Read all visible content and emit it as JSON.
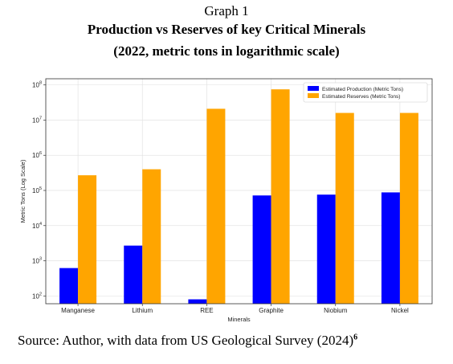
{
  "figure": {
    "label": "Graph 1",
    "title_line1": "Production vs Reserves of key Critical Minerals",
    "title_line2": "(2022, metric tons in logarithmic scale)",
    "source_text": "Source: Author, with data from US Geological Survey (2024)",
    "source_note": "6"
  },
  "chart_data": {
    "type": "bar",
    "title": "",
    "xlabel": "Minerals",
    "ylabel": "Metric Tons (Log Scale)",
    "yscale": "log",
    "ylim": [
      60,
      150000000
    ],
    "yticks": [
      {
        "value": 100,
        "base": "10",
        "exp": "2"
      },
      {
        "value": 1000,
        "base": "10",
        "exp": "3"
      },
      {
        "value": 10000,
        "base": "10",
        "exp": "4"
      },
      {
        "value": 100000,
        "base": "10",
        "exp": "5"
      },
      {
        "value": 1000000,
        "base": "10",
        "exp": "6"
      },
      {
        "value": 10000000,
        "base": "10",
        "exp": "7"
      },
      {
        "value": 100000000,
        "base": "10",
        "exp": "8"
      }
    ],
    "grid": true,
    "legend_position": "top-right",
    "categories": [
      "Manganese",
      "Lithium",
      "REE",
      "Graphite",
      "Niobium",
      "Nickel"
    ],
    "series": [
      {
        "name": "Estimated Production (Metric Tons)",
        "color": "#0000ff",
        "values": [
          620,
          2700,
          80,
          72000,
          76000,
          88000
        ]
      },
      {
        "name": "Estimated Reserves (Metric Tons)",
        "color": "#ffa500",
        "values": [
          270000,
          400000,
          21000000,
          75000000,
          16000000,
          16000000
        ]
      }
    ]
  }
}
